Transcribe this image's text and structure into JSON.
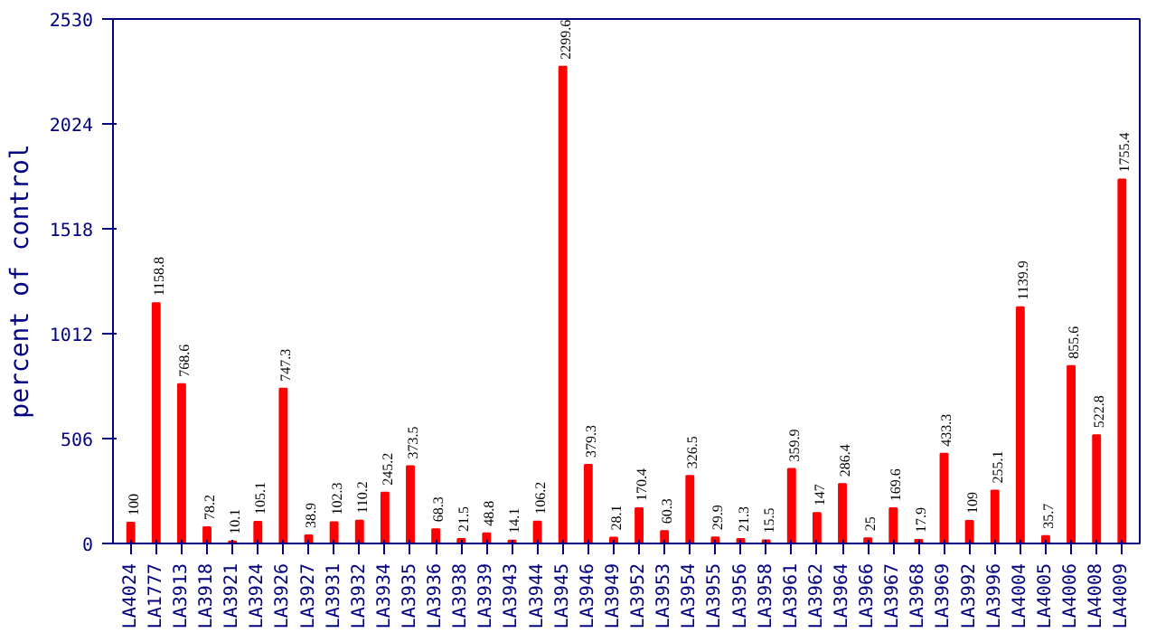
{
  "chart_data": {
    "type": "bar",
    "ylabel": "percent of control",
    "categories": [
      "LA4024",
      "LA1777",
      "LA3913",
      "LA3918",
      "LA3921",
      "LA3924",
      "LA3926",
      "LA3927",
      "LA3931",
      "LA3932",
      "LA3934",
      "LA3935",
      "LA3936",
      "LA3938",
      "LA3939",
      "LA3943",
      "LA3944",
      "LA3945",
      "LA3946",
      "LA3949",
      "LA3952",
      "LA3953",
      "LA3954",
      "LA3955",
      "LA3956",
      "LA3958",
      "LA3961",
      "LA3962",
      "LA3964",
      "LA3966",
      "LA3967",
      "LA3968",
      "LA3969",
      "LA3992",
      "LA3996",
      "LA4004",
      "LA4005",
      "LA4006",
      "LA4008",
      "LA4009"
    ],
    "values": [
      100,
      1158.8,
      768.6,
      78.2,
      10.1,
      105.1,
      747.3,
      38.9,
      102.3,
      110.2,
      245.2,
      373.5,
      68.3,
      21.5,
      48.8,
      14.1,
      106.2,
      2299.6,
      379.3,
      28.1,
      170.4,
      60.3,
      326.5,
      29.9,
      21.3,
      15.5,
      359.9,
      147,
      286.4,
      25,
      169.6,
      17.9,
      433.3,
      109,
      255.1,
      1139.9,
      35.7,
      855.6,
      522.8,
      1755.4
    ],
    "color": "#ff0000",
    "ylim": [
      0,
      2530
    ],
    "yticks": [
      0,
      506,
      1012,
      1518,
      2024,
      2530
    ],
    "grid": false,
    "data_labels": true
  }
}
